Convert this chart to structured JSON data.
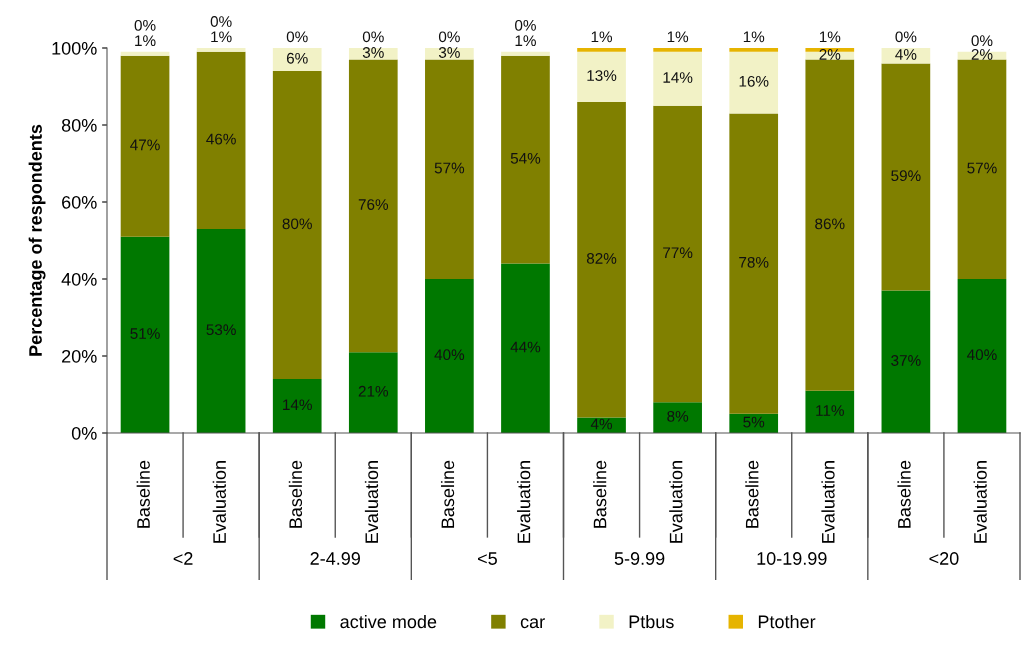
{
  "chart_data": {
    "type": "bar",
    "stacked": true,
    "ylabel": "Percentage of respondents",
    "categories": [
      "Baseline",
      "Evaluation",
      "Baseline",
      "Evaluation",
      "Baseline",
      "Evaluation",
      "Baseline",
      "Evaluation",
      "Baseline",
      "Evaluation",
      "Baseline",
      "Evaluation"
    ],
    "annotations": [
      "<2",
      "2-4.99",
      "<5",
      "5-9.99",
      "10-19.99",
      "<20"
    ],
    "series": [
      {
        "name": "active mode",
        "color": "#007800",
        "values": [
          51,
          53,
          14,
          21,
          40,
          44,
          4,
          8,
          5,
          11,
          37,
          40
        ],
        "value_labels": [
          "51%",
          "53%",
          "14%",
          "21%",
          "40%",
          "44%",
          "4%",
          "8%",
          "5%",
          "11%",
          "37%",
          "40%"
        ]
      },
      {
        "name": "car",
        "color": "#808000",
        "values": [
          47,
          46,
          80,
          76,
          57,
          54,
          82,
          77,
          78,
          86,
          59,
          57
        ],
        "value_labels": [
          "47%",
          "46%",
          "80%",
          "76%",
          "57%",
          "54%",
          "82%",
          "77%",
          "78%",
          "86%",
          "59%",
          "57%"
        ]
      },
      {
        "name": "Ptbus",
        "color": "#f2f2c6",
        "values": [
          1,
          1,
          6,
          3,
          3,
          1,
          13,
          14,
          16,
          2,
          4,
          2
        ],
        "value_labels": [
          "1%",
          "1%",
          "6%",
          "3%",
          "3%",
          "1%",
          "13%",
          "14%",
          "16%",
          "2%",
          "4%",
          "2%"
        ]
      },
      {
        "name": "Ptother",
        "color": "#e6b400",
        "values": [
          0,
          0,
          0,
          0,
          0,
          0,
          1,
          1,
          1,
          1,
          0,
          0
        ],
        "value_labels": [
          "0%",
          "0%",
          "0%",
          "0%",
          "0%",
          "0%",
          "1%",
          "1%",
          "1%",
          "1%",
          "0%",
          "0%"
        ]
      }
    ],
    "ylim": [
      0,
      100
    ],
    "yticks": [
      {
        "value": 0,
        "label": "0%"
      },
      {
        "value": 20,
        "label": "20%"
      },
      {
        "value": 40,
        "label": "40%"
      },
      {
        "value": 60,
        "label": "60%"
      },
      {
        "value": 80,
        "label": "80%"
      },
      {
        "value": 100,
        "label": "100%"
      }
    ],
    "grid": false,
    "legend": "bottom"
  }
}
